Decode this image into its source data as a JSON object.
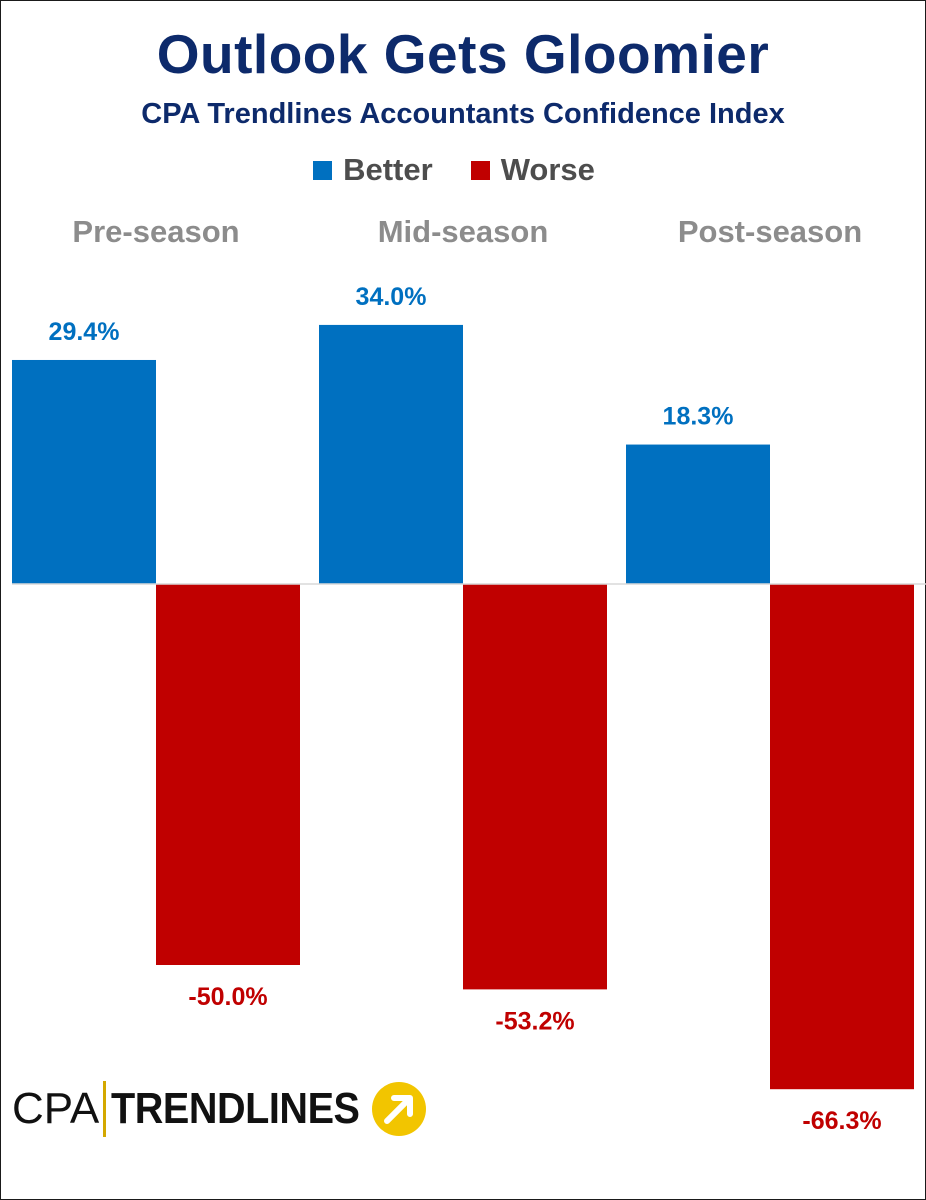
{
  "chart_data": {
    "type": "bar",
    "title": "Outlook Gets Gloomier",
    "subtitle": "CPA Trendlines Accountants Confidence Index",
    "categories": [
      "Pre-season",
      "Mid-season",
      "Post-season"
    ],
    "series": [
      {
        "name": "Better",
        "color": "#0070c0",
        "values": [
          29.4,
          34.0,
          18.3
        ],
        "labels": [
          "29.4%",
          "34.0%",
          "18.3%"
        ]
      },
      {
        "name": "Worse",
        "color": "#c00000",
        "values": [
          -50.0,
          -53.2,
          -66.3
        ],
        "labels": [
          "-50.0%",
          "-53.2%",
          "-66.3%"
        ]
      }
    ],
    "legend_position": "top-center",
    "category_label_position": "top",
    "grid": false,
    "ylim": [
      -66.3,
      34.0
    ]
  },
  "logo": {
    "left_text": "CPA",
    "right_text": "TRENDLINES",
    "accent_color": "#f2c500",
    "icon": "arrow-circle-icon"
  }
}
